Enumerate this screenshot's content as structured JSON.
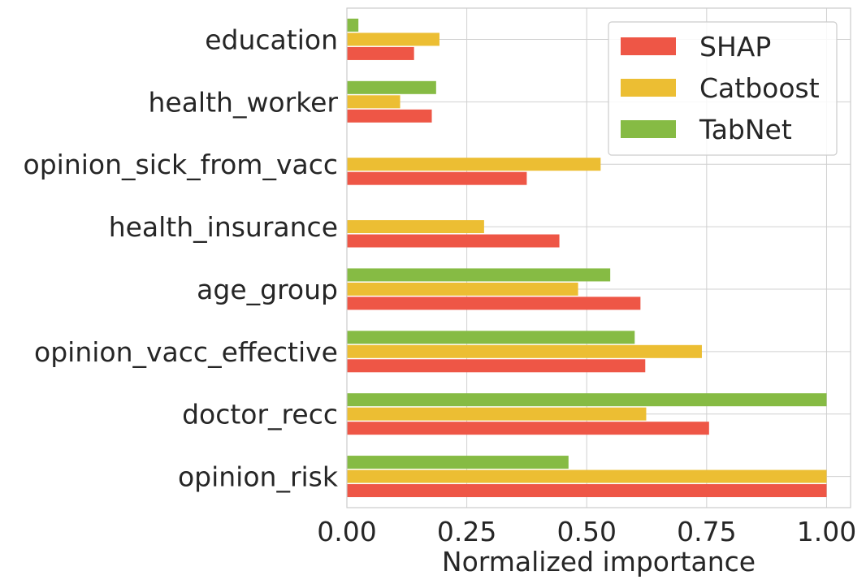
{
  "chart_data": {
    "type": "bar",
    "orientation": "horizontal",
    "categories": [
      "education",
      "health_worker",
      "opinion_sick_from_vacc",
      "health_insurance",
      "age_group",
      "opinion_vacc_effective",
      "doctor_recc",
      "opinion_risk"
    ],
    "series": [
      {
        "name": "SHAP",
        "color": "#ee5646",
        "values": [
          0.14,
          0.177,
          0.375,
          0.443,
          0.612,
          0.622,
          0.755,
          1.0
        ]
      },
      {
        "name": "Catboost",
        "color": "#ecbe33",
        "values": [
          0.193,
          0.111,
          0.529,
          0.286,
          0.482,
          0.74,
          0.624,
          1.0
        ]
      },
      {
        "name": "TabNet",
        "color": "#86bb44",
        "values": [
          0.024,
          0.186,
          null,
          null,
          0.549,
          0.6,
          1.0,
          0.462
        ]
      }
    ],
    "xlabel": "Normalized importance",
    "ylabel": "",
    "xlim": [
      0,
      1.05
    ],
    "xticks": [
      "0.00",
      "0.25",
      "0.50",
      "0.75",
      "1.00"
    ],
    "grid": true,
    "legend_position": "top-right"
  }
}
